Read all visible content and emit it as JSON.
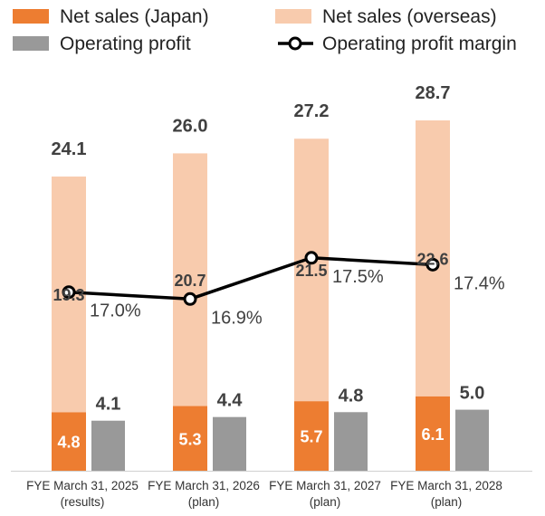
{
  "chart_data": {
    "type": "bar",
    "categories": [
      {
        "line1": "FYE March 31, 2025",
        "line2": "(results)"
      },
      {
        "line1": "FYE March 31, 2026",
        "line2": "(plan)"
      },
      {
        "line1": "FYE March 31, 2027",
        "line2": "(plan)"
      },
      {
        "line1": "FYE March 31, 2028",
        "line2": "(plan)"
      }
    ],
    "series": [
      {
        "name": "Net sales (Japan)",
        "kind": "stacked-bar",
        "stack": "sales",
        "color": "#ed7d31",
        "label_color": "#ffffff",
        "values": [
          4.8,
          5.3,
          5.7,
          6.1
        ],
        "labels": [
          "4.8",
          "5.3",
          "5.7",
          "6.1"
        ]
      },
      {
        "name": "Net sales (overseas)",
        "kind": "stacked-bar",
        "stack": "sales",
        "color": "#f8cbad",
        "label_color": "#404040",
        "values": [
          19.3,
          20.7,
          21.5,
          22.6
        ],
        "labels": [
          "19.3",
          "20.7",
          "21.5",
          "22.6"
        ]
      },
      {
        "name": "Operating profit",
        "kind": "bar",
        "color": "#999999",
        "label_color": "#404040",
        "values": [
          4.1,
          4.4,
          4.8,
          5.0
        ],
        "labels": [
          "4.1",
          "4.4",
          "4.8",
          "5.0"
        ]
      },
      {
        "name": "Operating profit margin",
        "kind": "line",
        "axis": "secondary",
        "color": "#000000",
        "values": [
          17.0,
          16.9,
          17.5,
          17.4
        ],
        "labels": [
          "17.0%",
          "16.9%",
          "17.5%",
          "17.4%"
        ]
      }
    ],
    "totals": {
      "values": [
        24.1,
        26.0,
        27.2,
        28.7
      ],
      "labels": [
        "24.1",
        "26.0",
        "27.2",
        "28.7"
      ]
    },
    "ylim": [
      0,
      28.7
    ],
    "margin_axis_range": [
      14.4,
      19.5
    ],
    "legend": "top",
    "grid": false,
    "title": "",
    "xlabel": "",
    "ylabel": ""
  }
}
